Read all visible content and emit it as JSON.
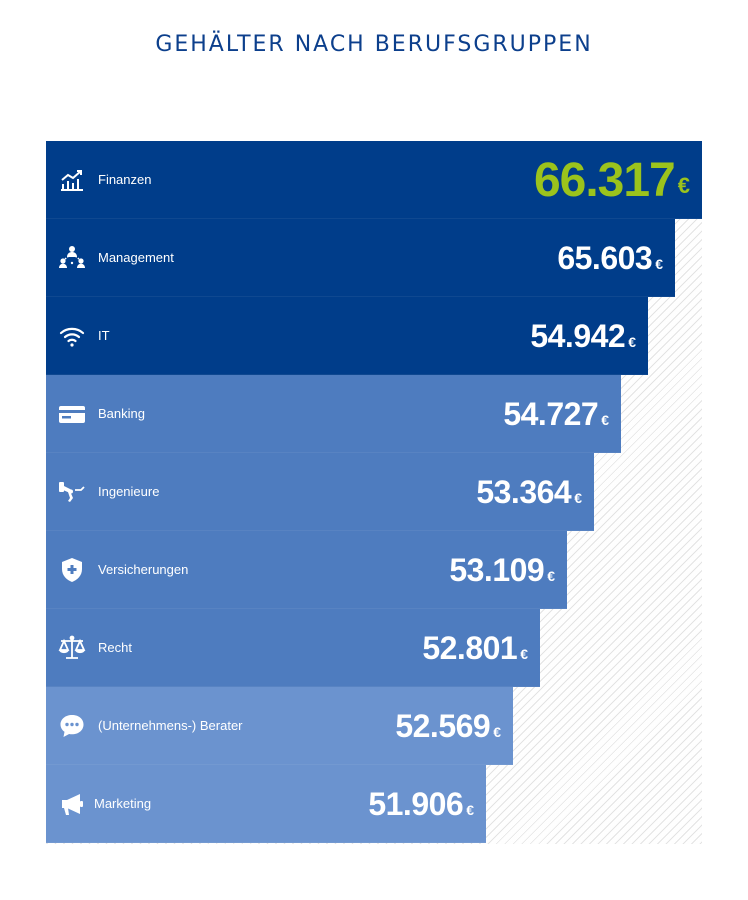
{
  "title": "GEHÄLTER NACH BERUFSGRUPPEN",
  "colors": {
    "dark_blue": "#003d8a",
    "mid_blue": "#4e7cbf",
    "light_blue": "#6b93cf",
    "highlight_green": "#9bc31c"
  },
  "chart_data": {
    "type": "bar",
    "orientation": "horizontal",
    "title": "GEHÄLTER NACH BERUFSGRUPPEN",
    "currency": "€",
    "categories": [
      "Finanzen",
      "Management",
      "IT",
      "Banking",
      "Ingenieure",
      "Versicherungen",
      "Recht",
      "(Unternehmens-) Berater",
      "Marketing"
    ],
    "values": [
      66317,
      65603,
      54942,
      54727,
      53364,
      53109,
      52801,
      52569,
      51906
    ],
    "value_labels": [
      "66.317",
      "65.603",
      "54.942",
      "54.727",
      "53.364",
      "53.109",
      "52.801",
      "52.569",
      "51.906"
    ],
    "icons": [
      "chart-growth-icon",
      "team-hierarchy-icon",
      "wifi-icon",
      "credit-card-icon",
      "robot-arm-icon",
      "shield-plus-icon",
      "scales-icon",
      "speech-bubble-icon",
      "megaphone-icon"
    ],
    "bar_colors": [
      "#003d8a",
      "#003d8a",
      "#003d8a",
      "#4e7cbf",
      "#4e7cbf",
      "#4e7cbf",
      "#4e7cbf",
      "#6b93cf",
      "#6b93cf"
    ],
    "grid": false,
    "legend": "none"
  }
}
